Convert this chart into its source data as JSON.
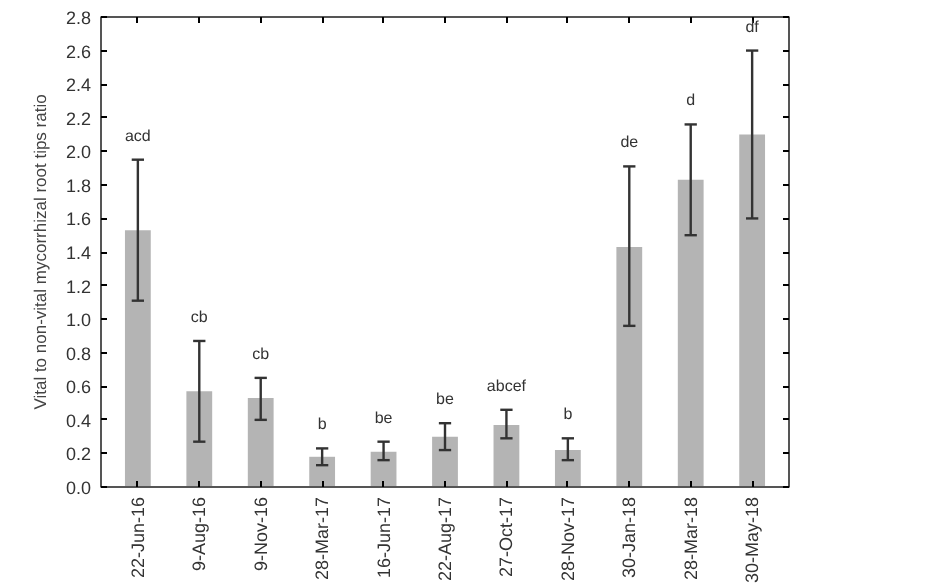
{
  "chart_data": {
    "type": "bar",
    "ylabel": "Vital to non-vital mycorrhizal root tips ratio",
    "categories": [
      "22-Jun-16",
      "9-Aug-16",
      "9-Nov-16",
      "28-Mar-17",
      "16-Jun-17",
      "22-Aug-17",
      "27-Oct-17",
      "28-Nov-17",
      "30-Jan-18",
      "28-Mar-18",
      "30-May-18"
    ],
    "values": [
      1.53,
      0.57,
      0.53,
      0.18,
      0.21,
      0.3,
      0.37,
      0.22,
      1.43,
      1.83,
      2.1
    ],
    "errors": [
      [
        1.11,
        1.95
      ],
      [
        0.27,
        0.87
      ],
      [
        0.4,
        0.65
      ],
      [
        0.13,
        0.23
      ],
      [
        0.16,
        0.27
      ],
      [
        0.22,
        0.38
      ],
      [
        0.29,
        0.46
      ],
      [
        0.16,
        0.29
      ],
      [
        0.96,
        1.91
      ],
      [
        1.5,
        2.16
      ],
      [
        1.6,
        2.6
      ]
    ],
    "color": "#b4b4b4",
    "ylim": [
      0,
      2.8
    ],
    "yticks": [
      {
        "value": 0,
        "label": "0.0"
      },
      0.2,
      0.4,
      0.6,
      0.8,
      {
        "value": 1,
        "label": "1.0"
      },
      1.2,
      1.4,
      1.6,
      1.8,
      {
        "value": 2,
        "label": "2.0"
      },
      2.2,
      2.4,
      2.6,
      2.8
    ],
    "grid": false,
    "annotations": [
      "acd",
      "cb",
      "cb",
      "b",
      "be",
      "be",
      "abcef",
      "b",
      "de",
      "d",
      "df"
    ]
  }
}
